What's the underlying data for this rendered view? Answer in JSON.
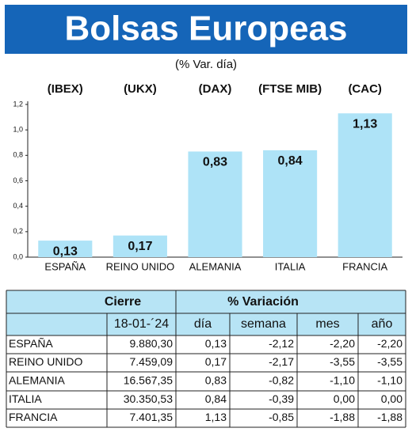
{
  "chart_data": {
    "type": "bar",
    "title": "Bolsas Europeas",
    "subtitle": "(% Var. día)",
    "group_labels": [
      "(IBEX)",
      "(UKX)",
      "(DAX)",
      "(FTSE MIB)",
      "(CAC)"
    ],
    "categories": [
      "ESPAÑA",
      "REINO UNIDO",
      "ALEMANIA",
      "ITALIA",
      "FRANCIA"
    ],
    "values": [
      0.13,
      0.17,
      0.83,
      0.84,
      1.13
    ],
    "value_labels": [
      "0,13",
      "0,17",
      "0,83",
      "0,84",
      "1,13"
    ],
    "color": "#aee3f7",
    "ylim": [
      0,
      1.2
    ],
    "yticks": [
      {
        "value": 0,
        "label": "0,0"
      },
      {
        "value": 0.2,
        "label": "0,2"
      },
      {
        "value": 0.4,
        "label": "0,4"
      },
      {
        "value": 0.6,
        "label": "0,6"
      },
      {
        "value": 0.8,
        "label": "0,8"
      },
      {
        "value": 1.0,
        "label": "1,0"
      },
      {
        "value": 1.2,
        "label": "1,2"
      }
    ]
  },
  "table": {
    "header": [
      "Cierre",
      "% Variación"
    ],
    "subheader": [
      "18-01-´24",
      "día",
      "semana",
      "mes",
      "año"
    ],
    "rows": [
      [
        "ESPAÑA",
        "9.880,30",
        "0,13",
        "-2,12",
        "-2,20",
        "-2,20"
      ],
      [
        "REINO UNIDO",
        "7.459,09",
        "0,17",
        "-2,17",
        "-3,55",
        "-3,55"
      ],
      [
        "ALEMANIA",
        "16.567,35",
        "0,83",
        "-0,82",
        "-1,10",
        "-1,10"
      ],
      [
        "ITALIA",
        "30.350,53",
        "0,84",
        "-0,39",
        "0,00",
        "0,00"
      ],
      [
        "FRANCIA",
        "7.401,35",
        "1,13",
        "-0,85",
        "-1,88",
        "-1,88"
      ]
    ]
  }
}
